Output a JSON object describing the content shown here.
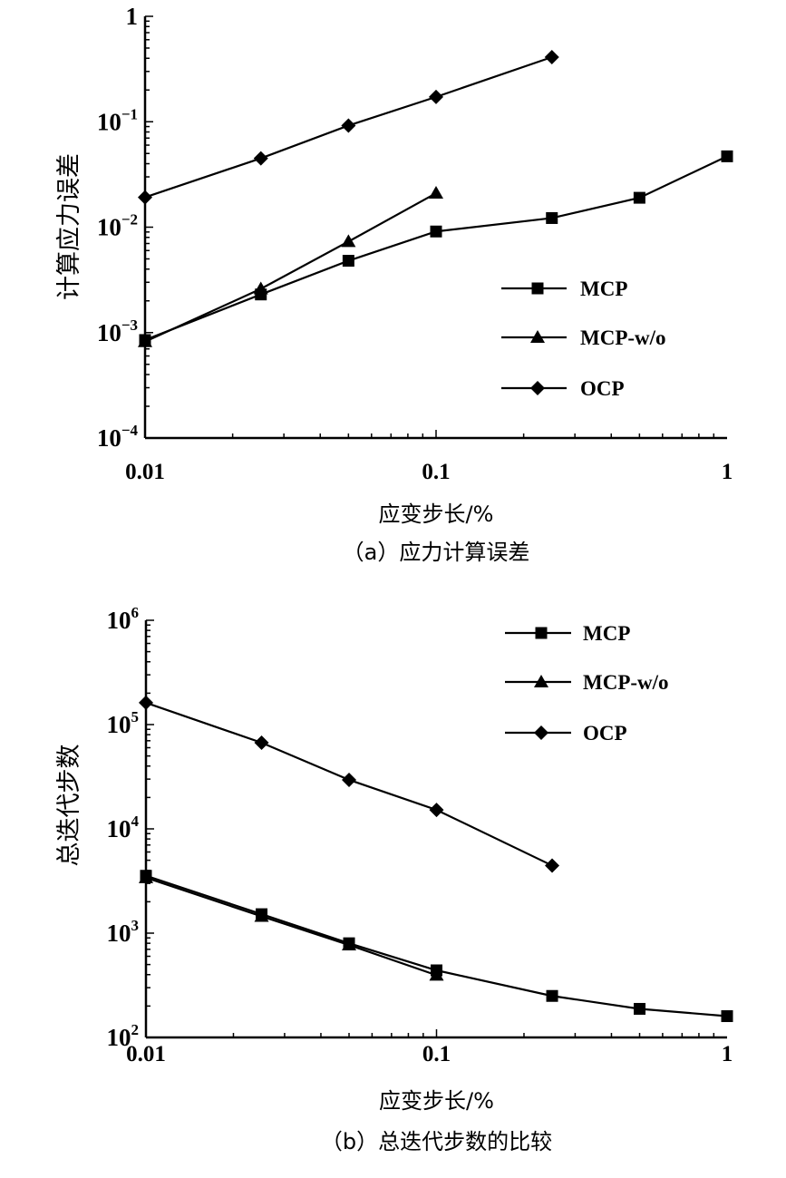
{
  "chart_data": [
    {
      "type": "line",
      "caption": "（a）应力计算误差",
      "xlabel": "应变步长/%",
      "ylabel": "计算应力误差",
      "xscale": "log",
      "yscale": "log",
      "xlim": [
        0.01,
        1
      ],
      "ylim": [
        0.0001,
        1
      ],
      "xticks": [
        {
          "v": 0.01,
          "label": "0.01"
        },
        {
          "v": 0.1,
          "label": "0.1"
        },
        {
          "v": 1,
          "label": "1"
        }
      ],
      "yticks": [
        {
          "v": 1,
          "base": "1",
          "exp": ""
        },
        {
          "v": 0.1,
          "base": "10",
          "exp": "−1"
        },
        {
          "v": 0.01,
          "base": "10",
          "exp": "−2"
        },
        {
          "v": 0.001,
          "base": "10",
          "exp": "−3"
        },
        {
          "v": 0.0001,
          "base": "10",
          "exp": "−4"
        }
      ],
      "legend_position": "center-right",
      "series": [
        {
          "name": "MCP",
          "marker": "square",
          "x": [
            0.01,
            0.025,
            0.05,
            0.1,
            0.25,
            0.5,
            1
          ],
          "y": [
            0.00085,
            0.0023,
            0.0048,
            0.0091,
            0.0122,
            0.019,
            0.047
          ]
        },
        {
          "name": "MCP-w/o",
          "marker": "triangle",
          "x": [
            0.01,
            0.025,
            0.05,
            0.1
          ],
          "y": [
            0.00082,
            0.0026,
            0.0073,
            0.021
          ]
        },
        {
          "name": "OCP",
          "marker": "diamond",
          "x": [
            0.01,
            0.025,
            0.05,
            0.1,
            0.25
          ],
          "y": [
            0.0192,
            0.045,
            0.092,
            0.172,
            0.41
          ]
        }
      ]
    },
    {
      "type": "line",
      "caption": "（b）总迭代步数的比较",
      "xlabel": "应变步长/%",
      "ylabel": "总迭代步数",
      "xscale": "log",
      "yscale": "log",
      "xlim": [
        0.01,
        1
      ],
      "ylim": [
        100,
        1000000
      ],
      "xticks": [
        {
          "v": 0.01,
          "label": "0.01"
        },
        {
          "v": 0.1,
          "label": "0.1"
        },
        {
          "v": 1,
          "label": "1"
        }
      ],
      "yticks": [
        {
          "v": 1000000,
          "base": "10",
          "exp": "6"
        },
        {
          "v": 100000,
          "base": "10",
          "exp": "5"
        },
        {
          "v": 10000,
          "base": "10",
          "exp": "4"
        },
        {
          "v": 1000,
          "base": "10",
          "exp": "3"
        },
        {
          "v": 100,
          "base": "10",
          "exp": "2"
        }
      ],
      "legend_position": "top-right",
      "series": [
        {
          "name": "MCP",
          "marker": "square",
          "x": [
            0.01,
            0.025,
            0.05,
            0.1,
            0.25,
            0.5,
            1
          ],
          "y": [
            3550,
            1520,
            800,
            440,
            250,
            188,
            160
          ]
        },
        {
          "name": "MCP-w/o",
          "marker": "triangle",
          "x": [
            0.01,
            0.025,
            0.05,
            0.1
          ],
          "y": [
            3400,
            1450,
            770,
            395
          ]
        },
        {
          "name": "OCP",
          "marker": "diamond",
          "x": [
            0.01,
            0.025,
            0.05,
            0.1,
            0.25
          ],
          "y": [
            162000,
            67000,
            29500,
            15200,
            4450
          ]
        }
      ]
    }
  ]
}
